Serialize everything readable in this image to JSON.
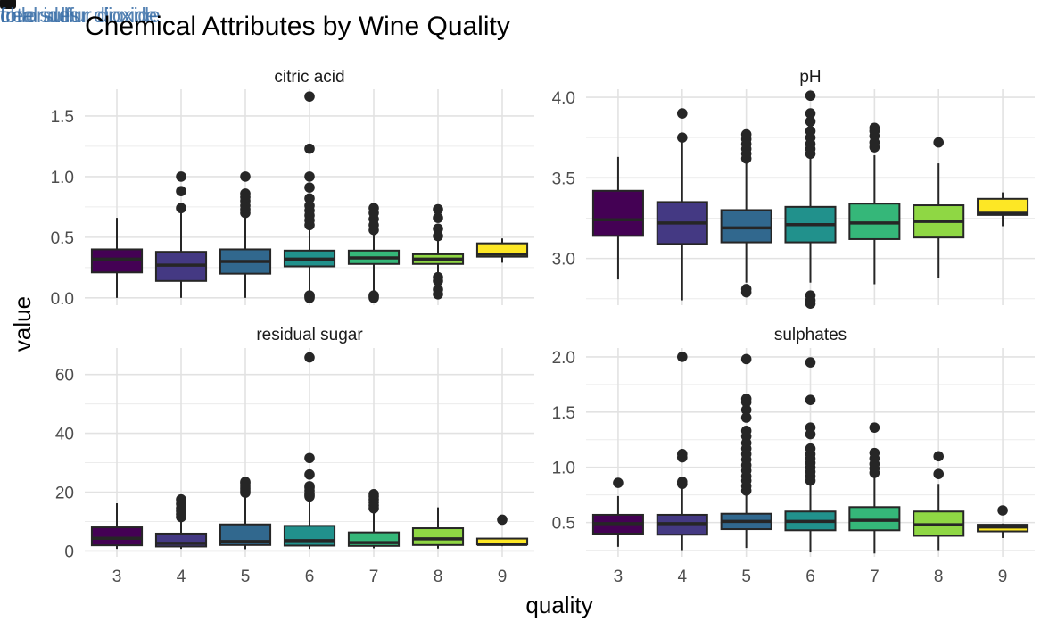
{
  "chart_data": {
    "type": "boxplot",
    "title": "Chemical Attributes by Wine Quality",
    "xlabel": "quality",
    "ylabel": "value",
    "categories": [
      "3",
      "4",
      "5",
      "6",
      "7",
      "8",
      "9"
    ],
    "fill_colors": [
      "#440154",
      "#443983",
      "#31688e",
      "#21918c",
      "#35b779",
      "#8fd744",
      "#fde725"
    ],
    "grid": true,
    "overlay_labels": [
      "total sulfur dioxide",
      "free sulfur dioxide",
      "chlorides"
    ],
    "panels": [
      {
        "title": "citric acid",
        "ylim": [
          -0.06,
          1.72
        ],
        "yticks": [
          0.0,
          0.5,
          1.0,
          1.5
        ],
        "ytick_labels": [
          "0.0",
          "0.5",
          "1.0",
          "1.5"
        ],
        "boxes": [
          {
            "q": "3",
            "low": 0.0,
            "q1": 0.21,
            "med": 0.32,
            "q3": 0.4,
            "high": 0.66,
            "outliers": []
          },
          {
            "q": "4",
            "low": 0.0,
            "q1": 0.14,
            "med": 0.27,
            "q3": 0.38,
            "high": 0.7,
            "outliers": [
              0.74,
              0.88,
              1.0
            ]
          },
          {
            "q": "5",
            "low": 0.0,
            "q1": 0.2,
            "med": 0.3,
            "q3": 0.4,
            "high": 0.68,
            "outliers": [
              0.7,
              0.73,
              0.76,
              0.8,
              0.83,
              0.86,
              1.0
            ]
          },
          {
            "q": "6",
            "low": 0.03,
            "q1": 0.26,
            "med": 0.32,
            "q3": 0.39,
            "high": 0.58,
            "outliers": [
              0.0,
              0.01,
              0.02,
              0.6,
              0.64,
              0.68,
              0.72,
              0.76,
              0.82,
              0.91,
              1.0,
              1.23,
              1.66
            ]
          },
          {
            "q": "7",
            "low": 0.04,
            "q1": 0.28,
            "med": 0.33,
            "q3": 0.39,
            "high": 0.53,
            "outliers": [
              0.0,
              0.01,
              0.02,
              0.56,
              0.6,
              0.65,
              0.7,
              0.74
            ]
          },
          {
            "q": "8",
            "low": 0.2,
            "q1": 0.28,
            "med": 0.32,
            "q3": 0.36,
            "high": 0.49,
            "outliers": [
              0.03,
              0.07,
              0.14,
              0.17,
              0.51,
              0.57,
              0.66,
              0.73
            ]
          },
          {
            "q": "9",
            "low": 0.29,
            "q1": 0.34,
            "med": 0.36,
            "q3": 0.45,
            "high": 0.49,
            "outliers": []
          }
        ]
      },
      {
        "title": "pH",
        "ylim": [
          2.71,
          4.05
        ],
        "yticks": [
          3.0,
          3.5,
          4.0
        ],
        "ytick_labels": [
          "3.0",
          "3.5",
          "4.0"
        ],
        "boxes": [
          {
            "q": "3",
            "low": 2.87,
            "q1": 3.14,
            "med": 3.24,
            "q3": 3.42,
            "high": 3.63,
            "outliers": []
          },
          {
            "q": "4",
            "low": 2.74,
            "q1": 3.09,
            "med": 3.22,
            "q3": 3.35,
            "high": 3.72,
            "outliers": [
              3.75,
              3.9
            ]
          },
          {
            "q": "5",
            "low": 2.85,
            "q1": 3.1,
            "med": 3.19,
            "q3": 3.3,
            "high": 3.6,
            "outliers": [
              2.79,
              2.81,
              3.62,
              3.65,
              3.68,
              3.71,
              3.74,
              3.77
            ]
          },
          {
            "q": "6",
            "low": 2.85,
            "q1": 3.1,
            "med": 3.21,
            "q3": 3.32,
            "high": 3.63,
            "outliers": [
              2.72,
              2.74,
              2.77,
              3.65,
              3.68,
              3.71,
              3.75,
              3.79,
              3.85,
              3.9,
              4.01
            ]
          },
          {
            "q": "7",
            "low": 2.84,
            "q1": 3.12,
            "med": 3.22,
            "q3": 3.34,
            "high": 3.64,
            "outliers": [
              3.69,
              3.72,
              3.76,
              3.79,
              3.81
            ]
          },
          {
            "q": "8",
            "low": 2.88,
            "q1": 3.13,
            "med": 3.23,
            "q3": 3.33,
            "high": 3.59,
            "outliers": [
              3.72
            ]
          },
          {
            "q": "9",
            "low": 3.2,
            "q1": 3.27,
            "med": 3.28,
            "q3": 3.37,
            "high": 3.41,
            "outliers": []
          }
        ]
      },
      {
        "title": "residual sugar",
        "ylim": [
          -2.0,
          69.0
        ],
        "yticks": [
          0,
          20,
          40,
          60
        ],
        "ytick_labels": [
          "0",
          "20",
          "40",
          "60"
        ],
        "boxes": [
          {
            "q": "3",
            "low": 0.7,
            "q1": 1.9,
            "med": 4.3,
            "q3": 8.0,
            "high": 16.2,
            "outliers": []
          },
          {
            "q": "4",
            "low": 0.7,
            "q1": 1.5,
            "med": 2.6,
            "q3": 5.9,
            "high": 10.9,
            "outliers": [
              11.5,
              12.5,
              13.5,
              14.5,
              16.0,
              17.5
            ]
          },
          {
            "q": "5",
            "low": 0.6,
            "q1": 2.0,
            "med": 3.2,
            "q3": 9.0,
            "high": 19.3,
            "outliers": [
              19.8,
              20.5,
              21.2,
              22.0,
              23.0,
              23.5
            ]
          },
          {
            "q": "6",
            "low": 0.7,
            "q1": 1.8,
            "med": 3.5,
            "q3": 8.5,
            "high": 18.0,
            "outliers": [
              18.5,
              19.0,
              19.5,
              20.5,
              21.5,
              22.0,
              26.0,
              31.6,
              65.8
            ]
          },
          {
            "q": "7",
            "low": 0.9,
            "q1": 1.7,
            "med": 2.8,
            "q3": 6.3,
            "high": 13.5,
            "outliers": [
              14.5,
              15.5,
              16.5,
              17.5,
              18.5,
              19.3
            ]
          },
          {
            "q": "8",
            "low": 0.8,
            "q1": 2.0,
            "med": 4.1,
            "q3": 7.7,
            "high": 14.8,
            "outliers": []
          },
          {
            "q": "9",
            "low": 1.6,
            "q1": 2.2,
            "med": 2.2,
            "q3": 4.2,
            "high": 4.3,
            "outliers": [
              10.6
            ]
          }
        ]
      },
      {
        "title": "sulphates",
        "ylim": [
          0.19,
          2.08
        ],
        "yticks": [
          0.5,
          1.0,
          1.5,
          2.0
        ],
        "ytick_labels": [
          "0.5",
          "1.0",
          "1.5",
          "2.0"
        ],
        "boxes": [
          {
            "q": "3",
            "low": 0.28,
            "q1": 0.4,
            "med": 0.49,
            "q3": 0.57,
            "high": 0.74,
            "outliers": [
              0.86
            ]
          },
          {
            "q": "4",
            "low": 0.25,
            "q1": 0.39,
            "med": 0.49,
            "q3": 0.57,
            "high": 0.82,
            "outliers": [
              0.85,
              0.87,
              1.09,
              1.12,
              2.0
            ]
          },
          {
            "q": "5",
            "low": 0.27,
            "q1": 0.44,
            "med": 0.51,
            "q3": 0.58,
            "high": 0.76,
            "outliers": [
              0.79,
              0.83,
              0.88,
              0.92,
              0.97,
              1.02,
              1.07,
              1.12,
              1.17,
              1.22,
              1.28,
              1.33,
              1.45,
              1.52,
              1.59,
              1.62,
              1.98
            ]
          },
          {
            "q": "6",
            "low": 0.23,
            "q1": 0.43,
            "med": 0.51,
            "q3": 0.6,
            "high": 0.86,
            "outliers": [
              0.88,
              0.92,
              0.96,
              1.0,
              1.04,
              1.08,
              1.12,
              1.17,
              1.3,
              1.36,
              1.61,
              1.95
            ]
          },
          {
            "q": "7",
            "low": 0.22,
            "q1": 0.43,
            "med": 0.52,
            "q3": 0.64,
            "high": 0.92,
            "outliers": [
              0.95,
              0.99,
              1.03,
              1.08,
              1.13,
              1.36
            ]
          },
          {
            "q": "8",
            "low": 0.25,
            "q1": 0.38,
            "med": 0.48,
            "q3": 0.6,
            "high": 0.85,
            "outliers": [
              0.94,
              1.1
            ]
          },
          {
            "q": "9",
            "low": 0.36,
            "q1": 0.42,
            "med": 0.46,
            "q3": 0.48,
            "high": 0.49,
            "outliers": [
              0.61
            ]
          }
        ]
      }
    ]
  }
}
